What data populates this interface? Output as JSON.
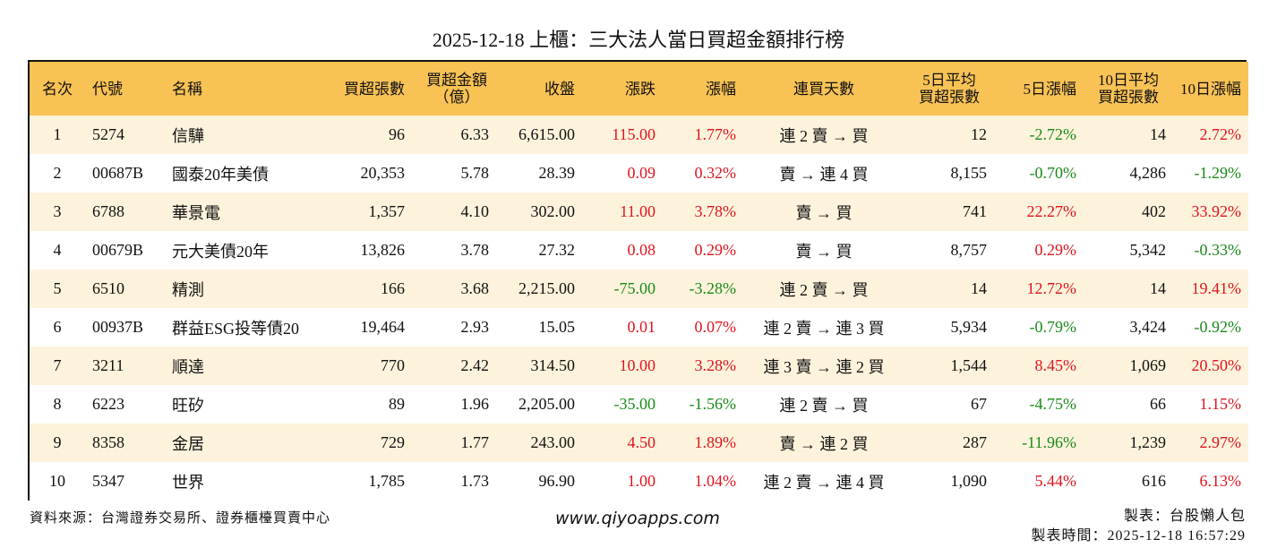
{
  "title": "2025-12-18 上櫃：三大法人當日買超金額排行榜",
  "colors": {
    "header_bg": "#f8c255",
    "row_odd_bg": "#fdf3dc",
    "row_even_bg": "#ffffff",
    "up": "#e0141e",
    "down": "#1a8a1a"
  },
  "table": {
    "headers": [
      "名次",
      "代號",
      "名稱",
      "買超張數",
      "買超金額\n（億）",
      "收盤",
      "漲跌",
      "漲幅",
      "連買天數",
      "5日平均\n買超張數",
      "5日漲幅",
      "10日平均\n買超張數",
      "10日漲幅"
    ],
    "rows": [
      {
        "rank": "1",
        "code": "5274",
        "name": "信驊",
        "shares": "96",
        "amount": "6.33",
        "close": "6,615.00",
        "change": "115.00",
        "change_pct": "1.77%",
        "streak": "連 2 賣 → 買",
        "avg5": "12",
        "pct5": "-2.72%",
        "avg10": "14",
        "pct10": "2.72%"
      },
      {
        "rank": "2",
        "code": "00687B",
        "name": "國泰20年美債",
        "shares": "20,353",
        "amount": "5.78",
        "close": "28.39",
        "change": "0.09",
        "change_pct": "0.32%",
        "streak": "賣 → 連 4 買",
        "avg5": "8,155",
        "pct5": "-0.70%",
        "avg10": "4,286",
        "pct10": "-1.29%"
      },
      {
        "rank": "3",
        "code": "6788",
        "name": "華景電",
        "shares": "1,357",
        "amount": "4.10",
        "close": "302.00",
        "change": "11.00",
        "change_pct": "3.78%",
        "streak": "賣 → 買",
        "avg5": "741",
        "pct5": "22.27%",
        "avg10": "402",
        "pct10": "33.92%"
      },
      {
        "rank": "4",
        "code": "00679B",
        "name": "元大美債20年",
        "shares": "13,826",
        "amount": "3.78",
        "close": "27.32",
        "change": "0.08",
        "change_pct": "0.29%",
        "streak": "賣 → 買",
        "avg5": "8,757",
        "pct5": "0.29%",
        "avg10": "5,342",
        "pct10": "-0.33%"
      },
      {
        "rank": "5",
        "code": "6510",
        "name": "精測",
        "shares": "166",
        "amount": "3.68",
        "close": "2,215.00",
        "change": "-75.00",
        "change_pct": "-3.28%",
        "streak": "連 2 賣 → 買",
        "avg5": "14",
        "pct5": "12.72%",
        "avg10": "14",
        "pct10": "19.41%"
      },
      {
        "rank": "6",
        "code": "00937B",
        "name": "群益ESG投等債20",
        "shares": "19,464",
        "amount": "2.93",
        "close": "15.05",
        "change": "0.01",
        "change_pct": "0.07%",
        "streak": "連 2 賣 → 連 3 買",
        "avg5": "5,934",
        "pct5": "-0.79%",
        "avg10": "3,424",
        "pct10": "-0.92%"
      },
      {
        "rank": "7",
        "code": "3211",
        "name": "順達",
        "shares": "770",
        "amount": "2.42",
        "close": "314.50",
        "change": "10.00",
        "change_pct": "3.28%",
        "streak": "連 3 賣 → 連 2 買",
        "avg5": "1,544",
        "pct5": "8.45%",
        "avg10": "1,069",
        "pct10": "20.50%"
      },
      {
        "rank": "8",
        "code": "6223",
        "name": "旺矽",
        "shares": "89",
        "amount": "1.96",
        "close": "2,205.00",
        "change": "-35.00",
        "change_pct": "-1.56%",
        "streak": "連 2 賣 → 買",
        "avg5": "67",
        "pct5": "-4.75%",
        "avg10": "66",
        "pct10": "1.15%"
      },
      {
        "rank": "9",
        "code": "8358",
        "name": "金居",
        "shares": "729",
        "amount": "1.77",
        "close": "243.00",
        "change": "4.50",
        "change_pct": "1.89%",
        "streak": "賣 → 連 2 買",
        "avg5": "287",
        "pct5": "-11.96%",
        "avg10": "1,239",
        "pct10": "2.97%"
      },
      {
        "rank": "10",
        "code": "5347",
        "name": "世界",
        "shares": "1,785",
        "amount": "1.73",
        "close": "96.90",
        "change": "1.00",
        "change_pct": "1.04%",
        "streak": "連 2 賣 → 連 4 買",
        "avg5": "1,090",
        "pct5": "5.44%",
        "avg10": "616",
        "pct10": "6.13%"
      }
    ]
  },
  "footer": {
    "source": "資料來源：台灣證券交易所、證券櫃檯買賣中心",
    "website": "www.qiyoapps.com",
    "author": "製表：台股懶人包",
    "timestamp": "製表時間：2025-12-18 16:57:29"
  }
}
